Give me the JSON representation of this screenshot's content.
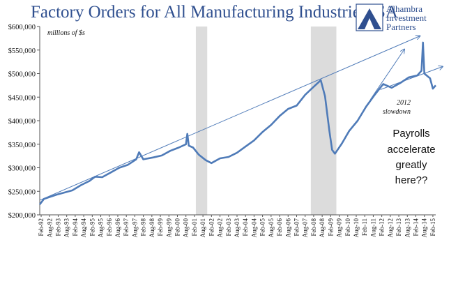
{
  "header": {
    "title": "Factory Orders for All Manufacturing Industries, SA"
  },
  "logo": {
    "lines": [
      "Alhambra",
      "Investment",
      "Partners"
    ]
  },
  "colors": {
    "line": "#4f7bb8",
    "title": "#2f4f8f",
    "shade": "#dcdcdc",
    "trend": "#4f7bb8"
  },
  "chart_data": {
    "type": "line",
    "title": "Factory Orders for All Manufacturing Industries, SA",
    "ylabel": "millions of $s",
    "ylim": [
      200000,
      600000
    ],
    "y_ticks": [
      200000,
      250000,
      300000,
      350000,
      400000,
      450000,
      500000,
      550000,
      600000
    ],
    "y_tick_labels": [
      "$200,000",
      "$250,000",
      "$300,000",
      "$350,000",
      "$400,000",
      "$450,000",
      "$500,000",
      "$550,000",
      "$600,000"
    ],
    "x_tick_labels": [
      "Feb-92",
      "Aug-92",
      "Feb-93",
      "Aug-93",
      "Feb-94",
      "Aug-94",
      "Feb-95",
      "Aug-95",
      "Feb-96",
      "Aug-96",
      "Feb-97",
      "Aug-97",
      "Feb-98",
      "Aug-98",
      "Feb-99",
      "Aug-99",
      "Feb-00",
      "Aug-00",
      "Feb-01",
      "Aug-01",
      "Feb-02",
      "Aug-02",
      "Feb-03",
      "Aug-03",
      "Feb-04",
      "Aug-04",
      "Feb-05",
      "Aug-05",
      "Feb-06",
      "Aug-06",
      "Feb-07",
      "Aug-07",
      "Feb-08",
      "Aug-08",
      "Feb-09",
      "Aug-09",
      "Feb-10",
      "Aug-10",
      "Feb-11",
      "Aug-11",
      "Feb-12",
      "Aug-12",
      "Feb-13",
      "Aug-13",
      "Feb-14",
      "Aug-14",
      "Feb-15"
    ],
    "x_start": "1992-01",
    "x_end": "2015-04",
    "recessions": [
      {
        "start": "2001-03",
        "end": "2001-11"
      },
      {
        "start": "2007-12",
        "end": "2009-06"
      }
    ],
    "series": [
      {
        "values": [
          {
            "x": "1992-01",
            "y": 222000
          },
          {
            "x": "1992-04",
            "y": 234000
          },
          {
            "x": "1992-08",
            "y": 238000
          },
          {
            "x": "1993-01",
            "y": 243000
          },
          {
            "x": "1993-06",
            "y": 247000
          },
          {
            "x": "1993-12",
            "y": 252000
          },
          {
            "x": "1994-06",
            "y": 263000
          },
          {
            "x": "1994-12",
            "y": 272000
          },
          {
            "x": "1995-04",
            "y": 281000
          },
          {
            "x": "1995-09",
            "y": 280000
          },
          {
            "x": "1996-03",
            "y": 290000
          },
          {
            "x": "1996-09",
            "y": 300000
          },
          {
            "x": "1997-03",
            "y": 306000
          },
          {
            "x": "1997-09",
            "y": 318000
          },
          {
            "x": "1997-11",
            "y": 333000
          },
          {
            "x": "1998-02",
            "y": 318000
          },
          {
            "x": "1998-09",
            "y": 322000
          },
          {
            "x": "1999-03",
            "y": 326000
          },
          {
            "x": "1999-09",
            "y": 336000
          },
          {
            "x": "2000-03",
            "y": 343000
          },
          {
            "x": "2000-08",
            "y": 350000
          },
          {
            "x": "2000-09",
            "y": 372000
          },
          {
            "x": "2000-10",
            "y": 347000
          },
          {
            "x": "2001-01",
            "y": 343000
          },
          {
            "x": "2001-05",
            "y": 328000
          },
          {
            "x": "2001-10",
            "y": 316000
          },
          {
            "x": "2002-02",
            "y": 310000
          },
          {
            "x": "2002-08",
            "y": 320000
          },
          {
            "x": "2003-02",
            "y": 323000
          },
          {
            "x": "2003-08",
            "y": 332000
          },
          {
            "x": "2004-02",
            "y": 345000
          },
          {
            "x": "2004-08",
            "y": 358000
          },
          {
            "x": "2005-02",
            "y": 376000
          },
          {
            "x": "2005-08",
            "y": 391000
          },
          {
            "x": "2006-02",
            "y": 410000
          },
          {
            "x": "2006-08",
            "y": 425000
          },
          {
            "x": "2007-02",
            "y": 432000
          },
          {
            "x": "2007-08",
            "y": 455000
          },
          {
            "x": "2008-02",
            "y": 472000
          },
          {
            "x": "2008-07",
            "y": 486000
          },
          {
            "x": "2008-10",
            "y": 452000
          },
          {
            "x": "2009-01",
            "y": 380000
          },
          {
            "x": "2009-03",
            "y": 338000
          },
          {
            "x": "2009-05",
            "y": 330000
          },
          {
            "x": "2009-10",
            "y": 352000
          },
          {
            "x": "2010-03",
            "y": 378000
          },
          {
            "x": "2010-09",
            "y": 400000
          },
          {
            "x": "2011-03",
            "y": 430000
          },
          {
            "x": "2011-09",
            "y": 455000
          },
          {
            "x": "2012-03",
            "y": 478000
          },
          {
            "x": "2012-09",
            "y": 470000
          },
          {
            "x": "2013-03",
            "y": 480000
          },
          {
            "x": "2013-09",
            "y": 492000
          },
          {
            "x": "2014-03",
            "y": 496000
          },
          {
            "x": "2014-06",
            "y": 506000
          },
          {
            "x": "2014-07",
            "y": 566000
          },
          {
            "x": "2014-08",
            "y": 500000
          },
          {
            "x": "2014-12",
            "y": 490000
          },
          {
            "x": "2015-02",
            "y": 468000
          },
          {
            "x": "2015-04",
            "y": 475000
          }
        ]
      }
    ]
  },
  "annotations": {
    "units": "millions of $s",
    "slowdown_line1": "2012",
    "slowdown_line2": "slowdown",
    "payrolls_lines": [
      "Payrolls",
      "accelerate",
      "greatly",
      "here??"
    ]
  }
}
